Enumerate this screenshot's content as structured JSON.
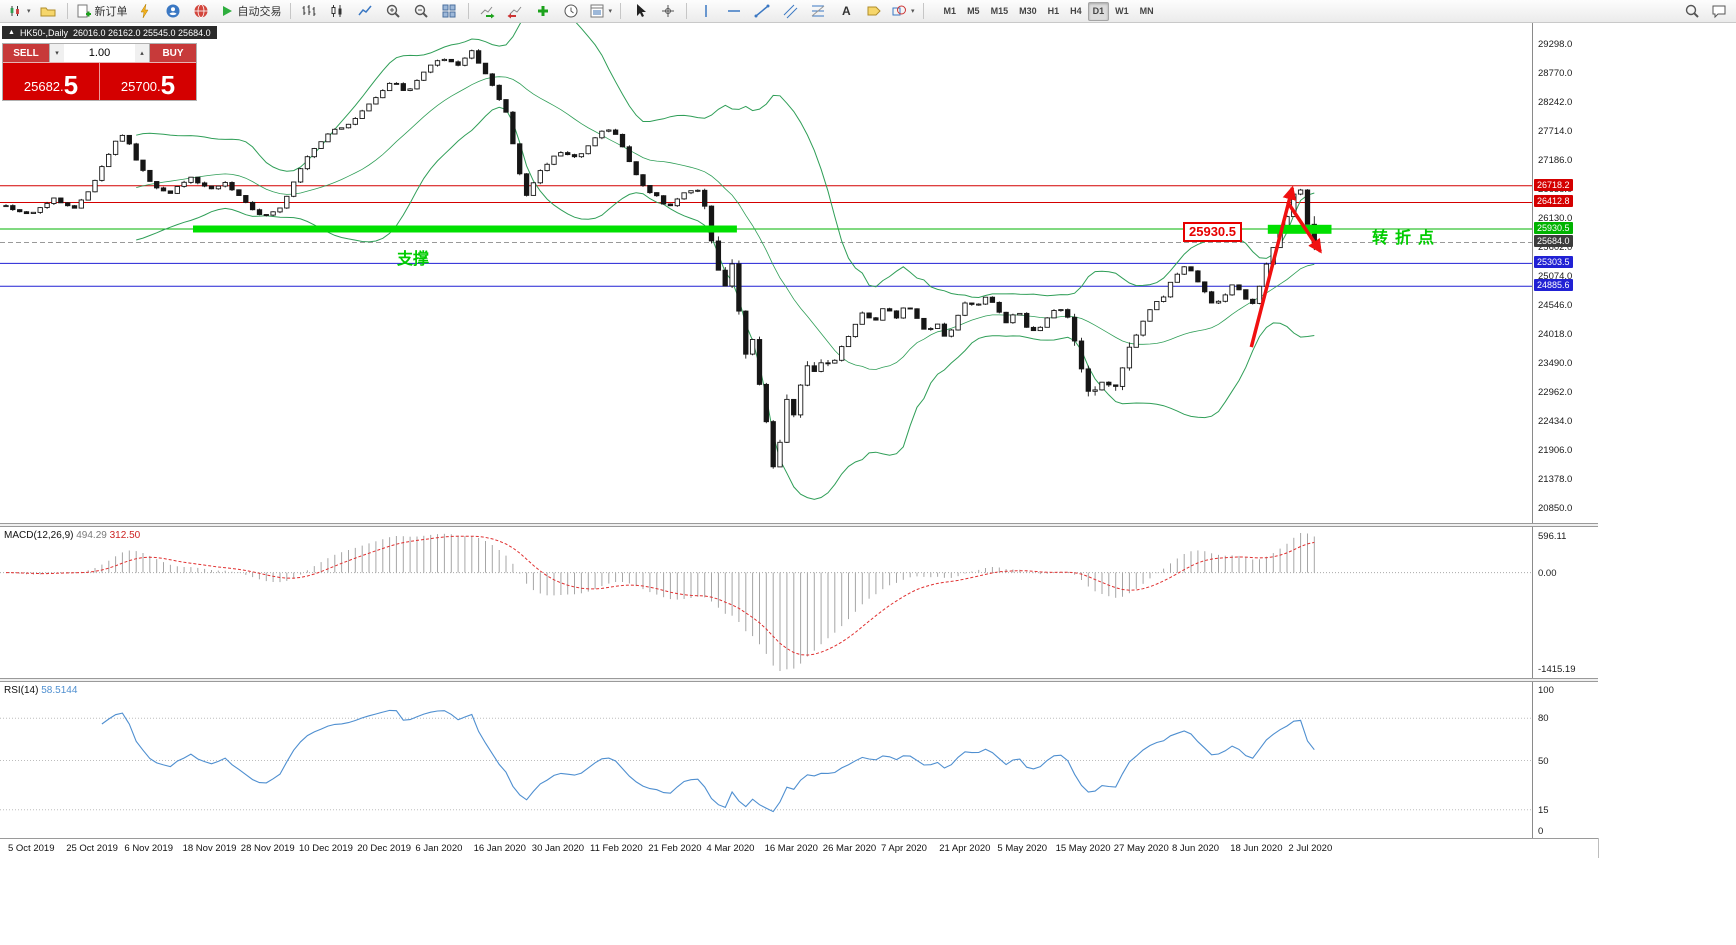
{
  "toolbar": {
    "new_order_label": "新订单",
    "autotrading_label": "自动交易",
    "timeframes": [
      "M1",
      "M5",
      "M15",
      "M30",
      "H1",
      "H4",
      "D1",
      "W1",
      "MN"
    ],
    "active_timeframe": "D1",
    "icon_names": [
      "chart-window-icon",
      "profiles-icon",
      "new-order-icon",
      "lightning-icon",
      "community-icon",
      "market-icon",
      "autotrading-play-icon",
      "bars-chart-icon",
      "candlestick-chart-icon",
      "line-chart-icon",
      "zoom-in-icon",
      "zoom-out-icon",
      "tile-windows-icon",
      "auto-scroll-icon",
      "chart-shift-icon",
      "add-indicator-icon",
      "periods-clock-icon",
      "template-icon",
      "cursor-icon",
      "crosshair-icon",
      "vertical-line-icon",
      "horizontal-line-icon",
      "trendline-icon",
      "channel-icon",
      "fibonacci-icon",
      "text-icon",
      "label-icon",
      "shapes-icon",
      "search-icon",
      "chat-icon"
    ]
  },
  "chart_header": {
    "symbol_title": "HK50-,Daily",
    "ohlc": "26016.0 26162.0 25545.0 25684.0",
    "collapse_glyph": "▲"
  },
  "trade_panel": {
    "sell_label": "SELL",
    "buy_label": "BUY",
    "volume": "1.00",
    "sell_price": "25682.5",
    "buy_price": "25700.5",
    "sell_price_main": "25682.",
    "sell_price_pip": "5",
    "buy_price_main": "25700.",
    "buy_price_pip": "5",
    "spin_down_glyph": "▾",
    "spin_up_glyph": "▴"
  },
  "price_axis": {
    "ticks": [
      29298.0,
      28770.0,
      28242.0,
      27714.0,
      27186.0,
      26658.0,
      26130.0,
      25602.0,
      25074.0,
      24546.0,
      24018.0,
      23490.0,
      22962.0,
      22434.0,
      21906.0,
      21378.0,
      20850.0
    ],
    "tags": [
      {
        "text": "26718.2",
        "price": 26718.2,
        "color": "#d40000",
        "type": "resistance-line"
      },
      {
        "text": "26412.8",
        "price": 26412.8,
        "color": "#d40000",
        "type": "resistance-line"
      },
      {
        "text": "25930.5",
        "price": 25930.5,
        "color": "#00b300",
        "type": "support-line"
      },
      {
        "text": "25684.0",
        "price": 25684.0,
        "color": "#3c3c3c",
        "type": "last-price"
      },
      {
        "text": "25303.5",
        "price": 25303.5,
        "color": "#2121d4",
        "type": "support-line"
      },
      {
        "text": "24885.6",
        "price": 24885.6,
        "color": "#2121d4",
        "type": "support-line"
      }
    ]
  },
  "dates": [
    "5 Oct 2019",
    "25 Oct 2019",
    "6 Nov 2019",
    "18 Nov 2019",
    "28 Nov 2019",
    "10 Dec 2019",
    "20 Dec 2019",
    "6 Jan 2020",
    "16 Jan 2020",
    "30 Jan 2020",
    "11 Feb 2020",
    "21 Feb 2020",
    "4 Mar 2020",
    "16 Mar 2020",
    "26 Mar 2020",
    "7 Apr 2020",
    "21 Apr 2020",
    "5 May 2020",
    "15 May 2020",
    "27 May 2020",
    "8 Jun 2020",
    "18 Jun 2020",
    "2 Jul 2020"
  ],
  "indicator_macd": {
    "name": "MACD(12,26,9)",
    "value_macd": "494.29",
    "value_signal": "312.50",
    "axis": [
      {
        "text": "596.11",
        "value": 596.11
      },
      {
        "text": "0.00",
        "value": 0
      },
      {
        "text": "-1415.19",
        "value": -1415.19
      }
    ]
  },
  "indicator_rsi": {
    "name": "RSI(14)",
    "value": "58.5144",
    "axis": [
      {
        "text": "100",
        "value": 100
      },
      {
        "text": "80",
        "value": 80
      },
      {
        "text": "50",
        "value": 50
      },
      {
        "text": "15",
        "value": 15
      },
      {
        "text": "0",
        "value": 0
      }
    ],
    "levels": [
      80,
      50,
      15
    ]
  },
  "annotations": {
    "support_text": "支撑",
    "turning_text": "转折点",
    "level_label": "25930.5",
    "colors": {
      "support_green": "#00e000",
      "text_green": "#00cc00",
      "label_red": "#e60000",
      "arrow_red": "#f01010"
    },
    "zones": [
      {
        "i1": 27.3,
        "i2": 106.7,
        "price": 25930.5,
        "thickness": 7
      },
      {
        "i1": 184.2,
        "i2": 193.5,
        "price": 25925,
        "thickness": 9
      }
    ],
    "arrows": [
      {
        "i1": 181.8,
        "p1": 23780,
        "i2": 187.8,
        "p2": 26680,
        "direction": "up"
      },
      {
        "i1": 187.1,
        "p1": 26420,
        "i2": 191.9,
        "p2": 25520,
        "direction": "down"
      }
    ]
  },
  "chart_data": {
    "type": "candlestick",
    "symbol": "HK50",
    "period": "Daily",
    "bid": 25682.5,
    "ask": 25700.5,
    "last_candle": {
      "open": 26016.0,
      "high": 26162.0,
      "low": 25545.0,
      "close": 25684.0
    },
    "num_candles": 192,
    "ylim": [
      20577,
      29698
    ],
    "hlines": [
      {
        "price": 26718.2,
        "color": "#d40000",
        "style": "solid"
      },
      {
        "price": 26412.8,
        "color": "#d40000",
        "style": "solid"
      },
      {
        "price": 25930.5,
        "color": "#00b300",
        "style": "solid"
      },
      {
        "price": 25684.0,
        "color": "#999999",
        "style": "dashed"
      },
      {
        "price": 25303.5,
        "color": "#2121d4",
        "style": "solid"
      },
      {
        "price": 24885.6,
        "color": "#2121d4",
        "style": "solid"
      }
    ],
    "close_anchors": [
      [
        0,
        26350
      ],
      [
        0.018,
        26200
      ],
      [
        0.037,
        26480
      ],
      [
        0.053,
        26300
      ],
      [
        0.068,
        26800
      ],
      [
        0.082,
        27480
      ],
      [
        0.091,
        27680
      ],
      [
        0.1,
        27150
      ],
      [
        0.112,
        26700
      ],
      [
        0.125,
        26560
      ],
      [
        0.14,
        26880
      ],
      [
        0.155,
        26660
      ],
      [
        0.168,
        26780
      ],
      [
        0.184,
        26380
      ],
      [
        0.197,
        26160
      ],
      [
        0.21,
        26320
      ],
      [
        0.222,
        26900
      ],
      [
        0.234,
        27380
      ],
      [
        0.25,
        27720
      ],
      [
        0.265,
        27880
      ],
      [
        0.28,
        28260
      ],
      [
        0.295,
        28620
      ],
      [
        0.306,
        28420
      ],
      [
        0.318,
        28760
      ],
      [
        0.333,
        29060
      ],
      [
        0.344,
        28900
      ],
      [
        0.356,
        29160
      ],
      [
        0.365,
        28820
      ],
      [
        0.375,
        28380
      ],
      [
        0.383,
        28020
      ],
      [
        0.39,
        27150
      ],
      [
        0.398,
        26520
      ],
      [
        0.41,
        27050
      ],
      [
        0.422,
        27320
      ],
      [
        0.436,
        27220
      ],
      [
        0.448,
        27520
      ],
      [
        0.459,
        27780
      ],
      [
        0.467,
        27620
      ],
      [
        0.477,
        27120
      ],
      [
        0.486,
        26720
      ],
      [
        0.497,
        26520
      ],
      [
        0.507,
        26320
      ],
      [
        0.516,
        26560
      ],
      [
        0.528,
        26680
      ],
      [
        0.535,
        26250
      ],
      [
        0.543,
        25280
      ],
      [
        0.549,
        24880
      ],
      [
        0.556,
        25380
      ],
      [
        0.561,
        24260
      ],
      [
        0.566,
        23580
      ],
      [
        0.571,
        23920
      ],
      [
        0.576,
        23060
      ],
      [
        0.581,
        22480
      ],
      [
        0.585,
        21760
      ],
      [
        0.589,
        21480
      ],
      [
        0.593,
        22320
      ],
      [
        0.598,
        22920
      ],
      [
        0.603,
        22520
      ],
      [
        0.608,
        23120
      ],
      [
        0.614,
        23520
      ],
      [
        0.62,
        23300
      ],
      [
        0.626,
        23620
      ],
      [
        0.631,
        23420
      ],
      [
        0.639,
        23820
      ],
      [
        0.648,
        24120
      ],
      [
        0.655,
        24420
      ],
      [
        0.663,
        24220
      ],
      [
        0.671,
        24520
      ],
      [
        0.681,
        24320
      ],
      [
        0.688,
        24560
      ],
      [
        0.696,
        24340
      ],
      [
        0.704,
        24020
      ],
      [
        0.711,
        24220
      ],
      [
        0.719,
        23920
      ],
      [
        0.727,
        24320
      ],
      [
        0.734,
        24620
      ],
      [
        0.742,
        24500
      ],
      [
        0.75,
        24720
      ],
      [
        0.757,
        24460
      ],
      [
        0.765,
        24200
      ],
      [
        0.773,
        24460
      ],
      [
        0.78,
        24160
      ],
      [
        0.788,
        24020
      ],
      [
        0.796,
        24320
      ],
      [
        0.803,
        24520
      ],
      [
        0.811,
        24340
      ],
      [
        0.818,
        23820
      ],
      [
        0.824,
        23130
      ],
      [
        0.83,
        22920
      ],
      [
        0.837,
        23220
      ],
      [
        0.845,
        22960
      ],
      [
        0.853,
        23320
      ],
      [
        0.86,
        23820
      ],
      [
        0.868,
        24220
      ],
      [
        0.876,
        24520
      ],
      [
        0.885,
        24720
      ],
      [
        0.892,
        25020
      ],
      [
        0.9,
        25270
      ],
      [
        0.908,
        25120
      ],
      [
        0.915,
        24820
      ],
      [
        0.923,
        24520
      ],
      [
        0.931,
        24720
      ],
      [
        0.938,
        24960
      ],
      [
        0.946,
        24700
      ],
      [
        0.954,
        24560
      ],
      [
        0.961,
        25120
      ],
      [
        0.969,
        25620
      ],
      [
        0.977,
        26020
      ],
      [
        0.984,
        26560
      ],
      [
        0.99,
        26660
      ],
      [
        0.996,
        26100
      ],
      [
        1,
        25684
      ]
    ],
    "high_vol_ranges": [
      [
        0.53,
        0.63
      ],
      [
        0.815,
        0.862
      ]
    ],
    "indicators": {
      "bollinger_period": 20,
      "bollinger_dev": 2,
      "macd": [
        12,
        26,
        9
      ],
      "rsi_period": 14,
      "macd_current": [
        494.29,
        312.5
      ],
      "rsi_current": 58.5144
    }
  }
}
